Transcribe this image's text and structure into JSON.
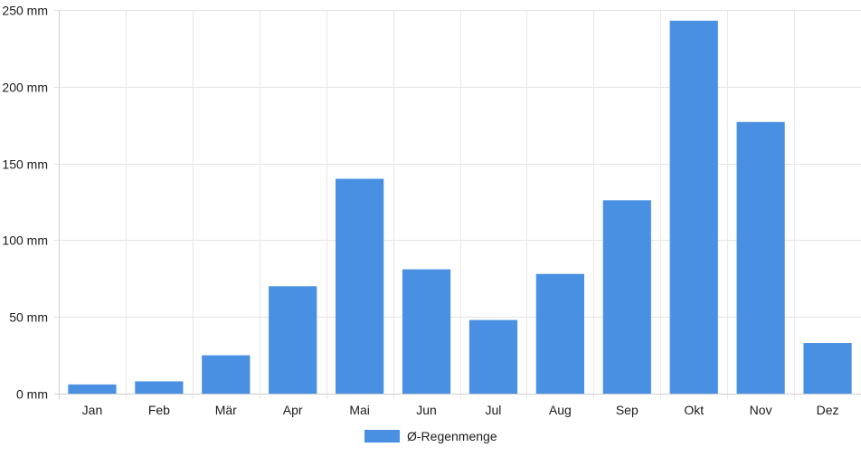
{
  "chart_data": {
    "type": "bar",
    "categories": [
      "Jan",
      "Feb",
      "Mär",
      "Apr",
      "Mai",
      "Jun",
      "Jul",
      "Aug",
      "Sep",
      "Okt",
      "Nov",
      "Dez"
    ],
    "series": [
      {
        "name": "Ø-Regenmenge",
        "color": "#4a90e2",
        "values": [
          6,
          8,
          25,
          70,
          140,
          81,
          48,
          78,
          126,
          243,
          177,
          33
        ]
      }
    ],
    "ylim": [
      0,
      250
    ],
    "yticks": [
      0,
      50,
      100,
      150,
      200,
      250
    ],
    "ytick_unit": " mm",
    "grid": true,
    "legend_position": "bottom-center"
  }
}
